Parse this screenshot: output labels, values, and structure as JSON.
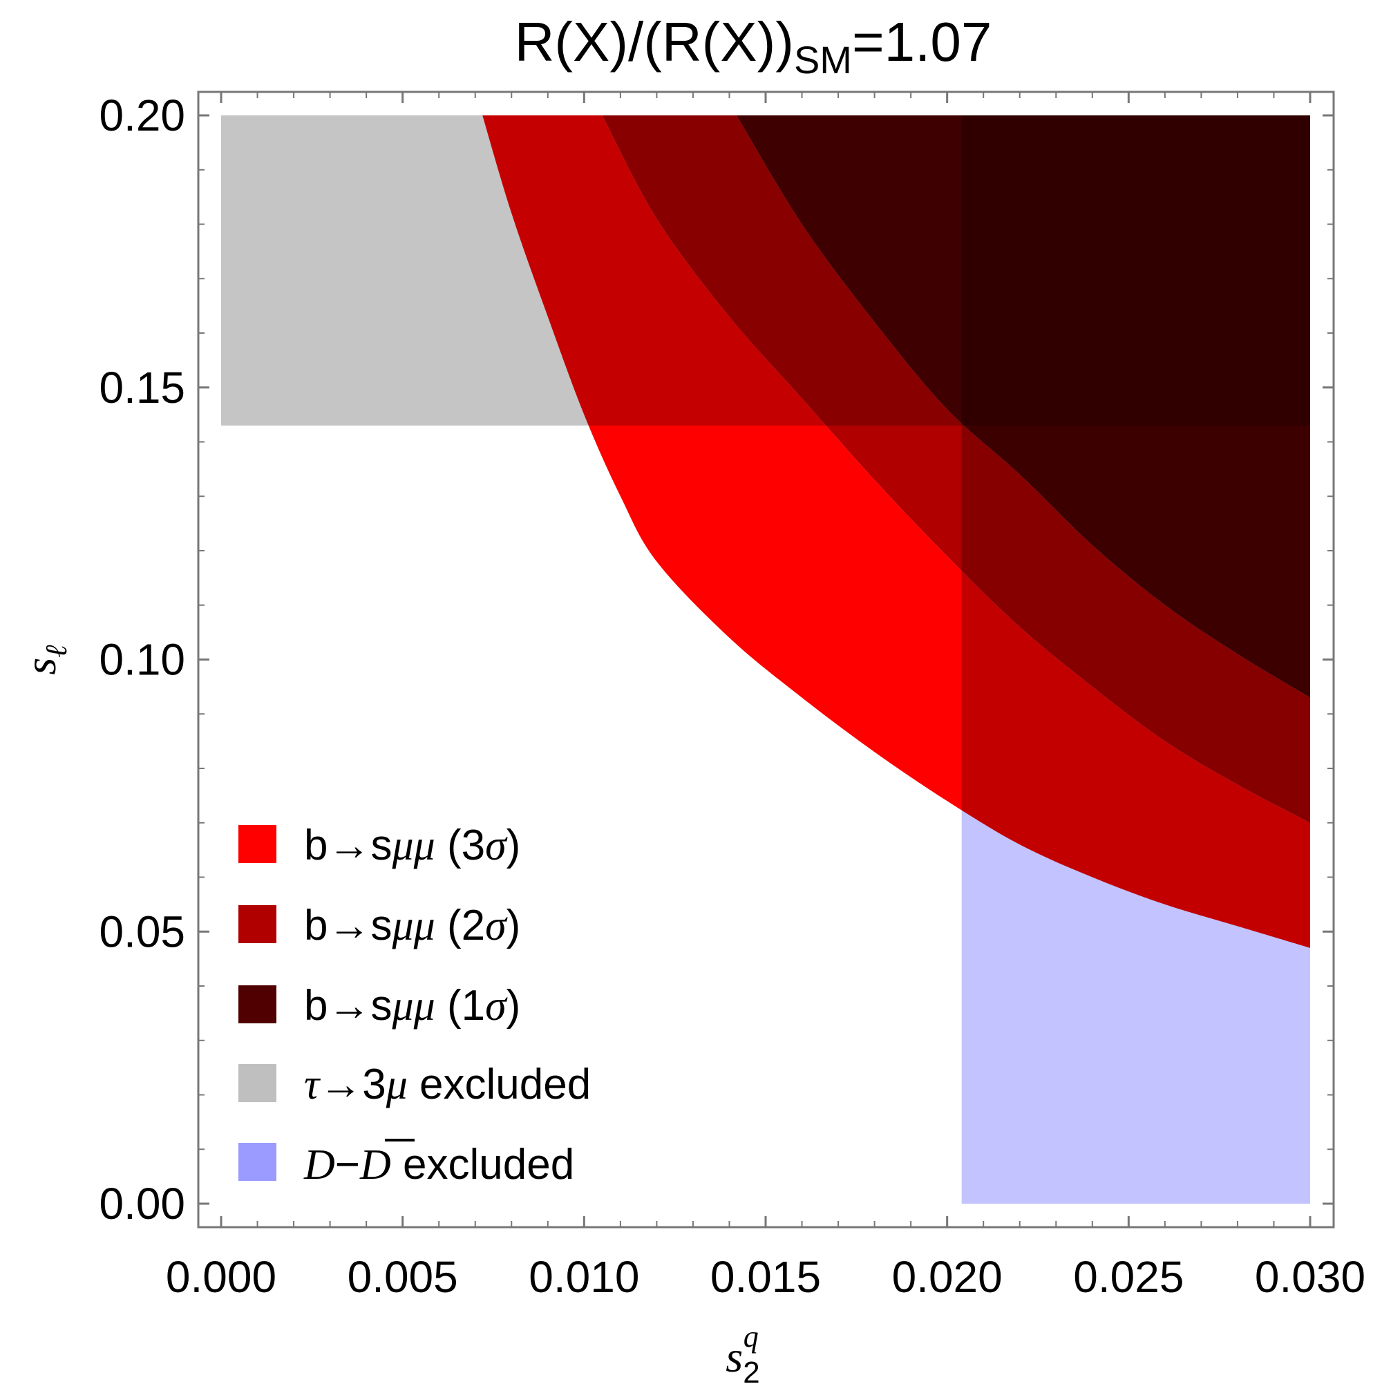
{
  "chart_data": {
    "type": "area",
    "title": {
      "main": "R(X)/(R(X))",
      "sub": "SM",
      "tail": "=1.07"
    },
    "xlabel": {
      "base": "s",
      "sub": "2",
      "sup": "q"
    },
    "ylabel": {
      "base": "s",
      "sub": "ℓ"
    },
    "xlim": [
      0.0,
      0.03
    ],
    "ylim": [
      0.0,
      0.2
    ],
    "x_ticks": [
      "0.000",
      "0.005",
      "0.010",
      "0.015",
      "0.020",
      "0.025",
      "0.030"
    ],
    "y_ticks": [
      "0.00",
      "0.05",
      "0.10",
      "0.15",
      "0.20"
    ],
    "grid": false,
    "legend_position": "bottom-left",
    "regions": [
      {
        "name": "b→sμμ (3σ)",
        "color": "#ff0000",
        "kind": "band",
        "inner_boundary": [
          [
            0.0072,
            0.2
          ],
          [
            0.008,
            0.182
          ],
          [
            0.009,
            0.163
          ],
          [
            0.01,
            0.145
          ],
          [
            0.011,
            0.13
          ],
          [
            0.012,
            0.118
          ],
          [
            0.014,
            0.104
          ],
          [
            0.016,
            0.093
          ],
          [
            0.018,
            0.083
          ],
          [
            0.02,
            0.074
          ],
          [
            0.022,
            0.066
          ],
          [
            0.024,
            0.06
          ],
          [
            0.026,
            0.055
          ],
          [
            0.028,
            0.051
          ],
          [
            0.03,
            0.047
          ]
        ],
        "outer_boundary": [
          [
            0.03,
            0.07
          ],
          [
            0.028,
            0.077
          ],
          [
            0.026,
            0.085
          ],
          [
            0.024,
            0.095
          ],
          [
            0.022,
            0.106
          ],
          [
            0.02,
            0.119
          ],
          [
            0.018,
            0.133
          ],
          [
            0.016,
            0.148
          ],
          [
            0.014,
            0.163
          ],
          [
            0.012,
            0.181
          ],
          [
            0.0105,
            0.2
          ]
        ]
      },
      {
        "name": "b→sμμ (2σ)",
        "color": "#b00000",
        "kind": "band",
        "inner_boundary": [
          [
            0.0105,
            0.2
          ],
          [
            0.012,
            0.181
          ],
          [
            0.014,
            0.163
          ],
          [
            0.016,
            0.148
          ],
          [
            0.018,
            0.133
          ],
          [
            0.02,
            0.119
          ],
          [
            0.022,
            0.106
          ],
          [
            0.024,
            0.095
          ],
          [
            0.026,
            0.085
          ],
          [
            0.028,
            0.077
          ],
          [
            0.03,
            0.07
          ]
        ],
        "outer_boundary": [
          [
            0.03,
            0.093
          ],
          [
            0.028,
            0.101
          ],
          [
            0.026,
            0.11
          ],
          [
            0.024,
            0.121
          ],
          [
            0.022,
            0.134
          ],
          [
            0.02,
            0.146
          ],
          [
            0.018,
            0.162
          ],
          [
            0.016,
            0.18
          ],
          [
            0.0142,
            0.2
          ]
        ]
      },
      {
        "name": "b→sμμ (1σ)",
        "color": "#500000",
        "kind": "band",
        "inner_boundary": [
          [
            0.0142,
            0.2
          ],
          [
            0.016,
            0.18
          ],
          [
            0.018,
            0.162
          ],
          [
            0.02,
            0.146
          ],
          [
            0.022,
            0.134
          ],
          [
            0.024,
            0.121
          ],
          [
            0.026,
            0.11
          ],
          [
            0.028,
            0.101
          ],
          [
            0.03,
            0.093
          ]
        ],
        "outer_boundary": [
          [
            0.03,
            0.2
          ],
          [
            0.0142,
            0.2
          ]
        ]
      },
      {
        "name": "τ→3μ excluded",
        "color": "#bfbfbf",
        "kind": "rect",
        "x_range": [
          0.0,
          0.03
        ],
        "y_range": [
          0.143,
          0.2
        ]
      },
      {
        "name": "D−D̄ excluded",
        "color": "#9b9bff",
        "kind": "rect",
        "x_range": [
          0.0204,
          0.03
        ],
        "y_range": [
          0.0,
          0.2
        ]
      }
    ],
    "legend": [
      {
        "key": "b→sμμ (3σ)",
        "color": "#ff0000",
        "prefix": "b→s",
        "mu": "μμ",
        "paren_open": " (3",
        "sigma": "σ",
        "paren_close": ")"
      },
      {
        "key": "b→sμμ (2σ)",
        "color": "#b00000",
        "prefix": "b→s",
        "mu": "μμ",
        "paren_open": " (2",
        "sigma": "σ",
        "paren_close": ")"
      },
      {
        "key": "b→sμμ (1σ)",
        "color": "#500000",
        "prefix": "b→s",
        "mu": "μμ",
        "paren_open": " (1",
        "sigma": "σ",
        "paren_close": ")"
      },
      {
        "key": "τ→3μ excluded",
        "color": "#bfbfbf",
        "tau": "τ",
        "arrow3": "→3",
        "mu": "μ",
        "rest": " excluded"
      },
      {
        "key": "D−D̄ excluded",
        "color": "#9b9bff",
        "d1": "D",
        "dash": "−",
        "d2": "D",
        "rest": " excluded"
      }
    ]
  }
}
